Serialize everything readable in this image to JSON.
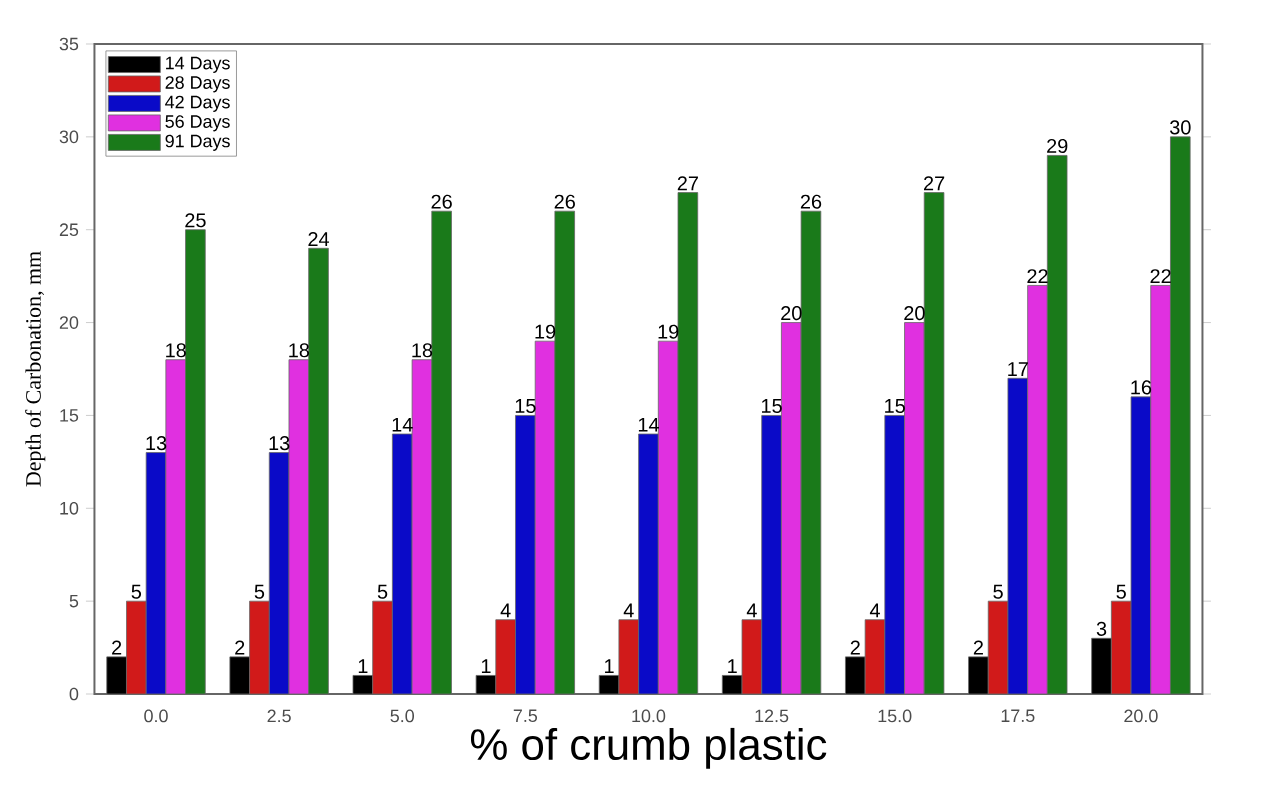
{
  "chart_data": {
    "type": "bar",
    "xlabel": "% of crumb plastic",
    "ylabel": "Depth of Carbonation, mm",
    "categories": [
      "0.0",
      "2.5",
      "5.0",
      "7.5",
      "10.0",
      "12.5",
      "15.0",
      "17.5",
      "20.0"
    ],
    "series": [
      {
        "name": "14 Days",
        "color": "#000000",
        "values": [
          2,
          2,
          1,
          1,
          1,
          1,
          2,
          2,
          3
        ]
      },
      {
        "name": "28 Days",
        "color": "#d11a1a",
        "values": [
          5,
          5,
          5,
          4,
          4,
          4,
          4,
          5,
          5
        ]
      },
      {
        "name": "42 Days",
        "color": "#0a0ac8",
        "values": [
          13,
          13,
          14,
          15,
          14,
          15,
          15,
          17,
          16
        ]
      },
      {
        "name": "56 Days",
        "color": "#e030e0",
        "values": [
          18,
          18,
          18,
          19,
          19,
          20,
          20,
          22,
          22
        ]
      },
      {
        "name": "91 Days",
        "color": "#1a7a1a",
        "values": [
          25,
          24,
          26,
          26,
          27,
          26,
          27,
          29,
          30
        ]
      }
    ],
    "ylim": [
      0,
      35
    ],
    "yticks": [
      0,
      5,
      10,
      15,
      20,
      25,
      30,
      35
    ],
    "data_labels": true,
    "legend": "top left"
  }
}
